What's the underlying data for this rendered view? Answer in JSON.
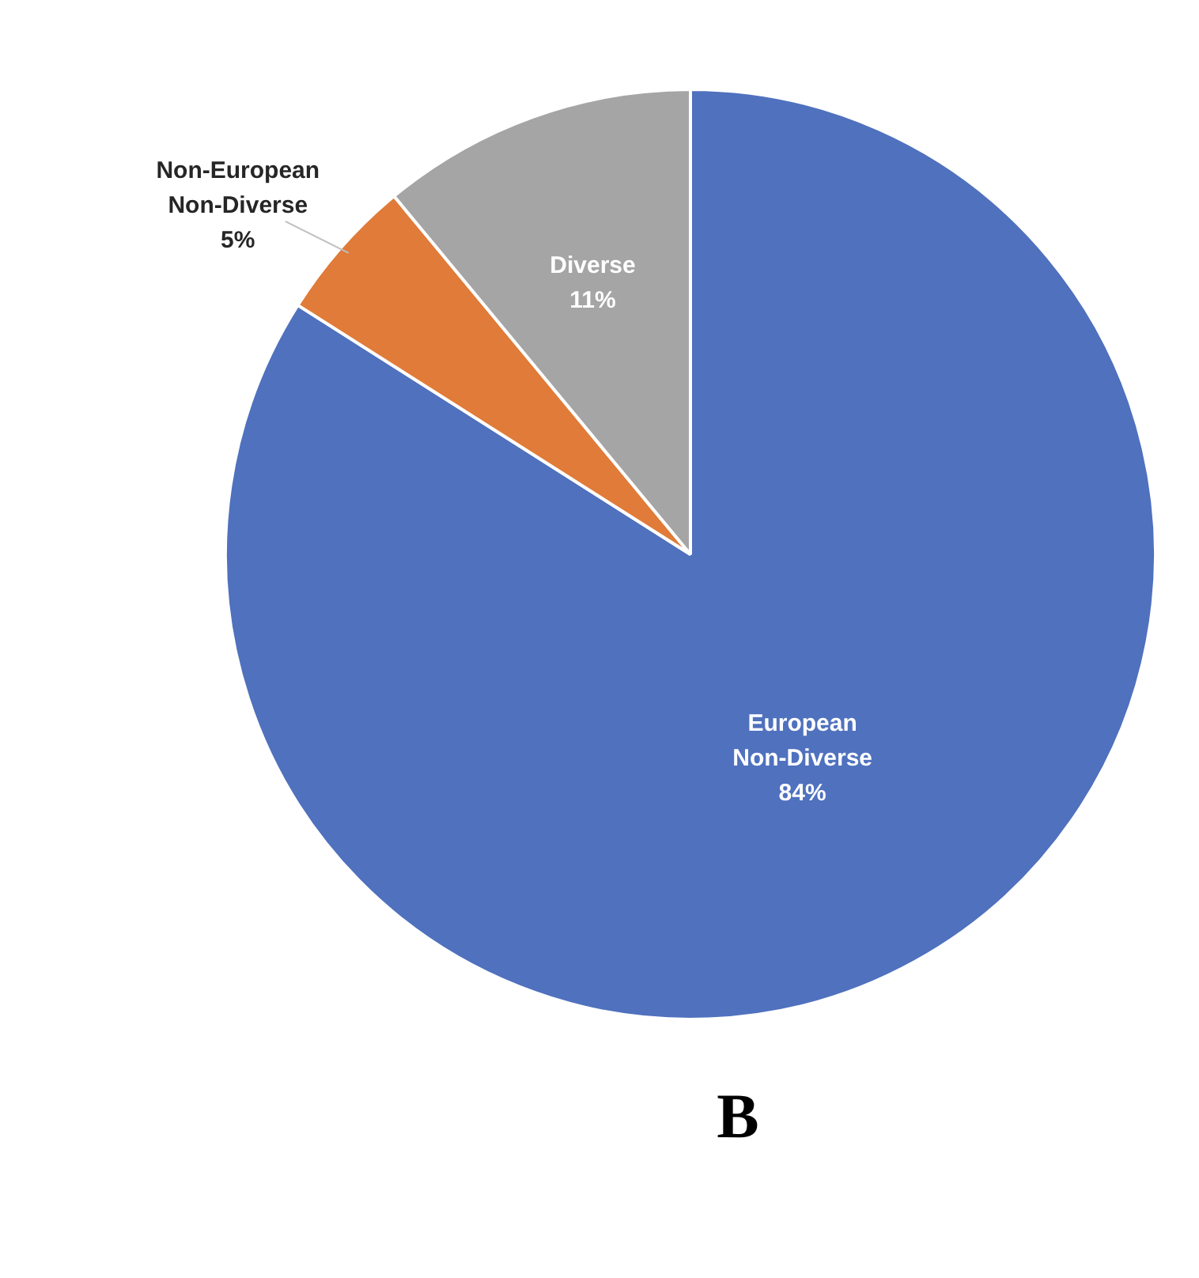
{
  "chart_data": {
    "type": "pie",
    "title": "B",
    "categories": [
      "European Non-Diverse",
      "Non-European Non-Diverse",
      "Diverse"
    ],
    "values": [
      84,
      5,
      11
    ],
    "colors": [
      "#4f71be",
      "#e07b39",
      "#a5a5a5"
    ],
    "value_labels": [
      "84%",
      "5%",
      "11%"
    ]
  }
}
